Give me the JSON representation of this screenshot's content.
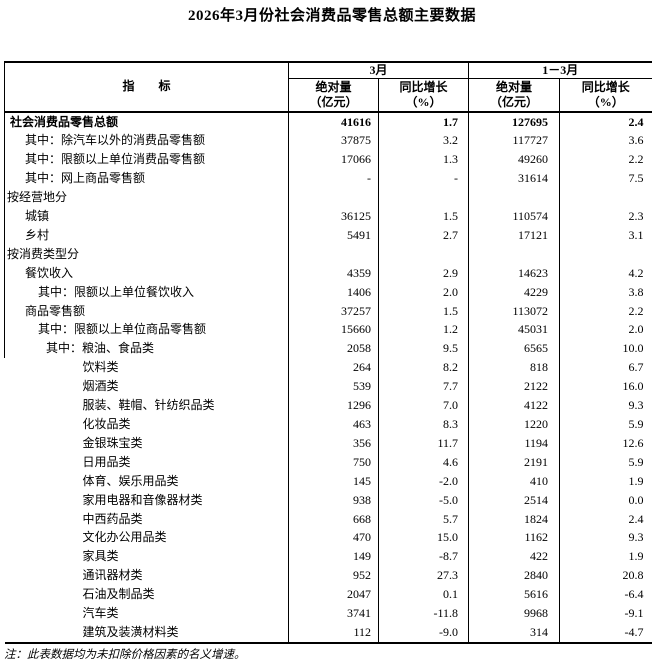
{
  "title": "2026年3月份社会消费品零售总额主要数据",
  "table": {
    "header": {
      "indicator_label": "指　　标",
      "groups": [
        {
          "label": "3月"
        },
        {
          "label": "1－3月"
        }
      ],
      "subcols": [
        {
          "line1": "绝对量",
          "line2": "（亿元）"
        },
        {
          "line1": "同比增长",
          "line2": "（%）"
        },
        {
          "line1": "绝对量",
          "line2": "（亿元）"
        },
        {
          "line1": "同比增长",
          "line2": "（%）"
        }
      ]
    },
    "rows": [
      {
        "label": "社会消费品零售总额",
        "indent": "total",
        "bold": true,
        "values": [
          "41616",
          "1.7",
          "127695",
          "2.4"
        ]
      },
      {
        "label": "其中：除汽车以外的消费品零售额",
        "indent": "l1",
        "values": [
          "37875",
          "3.2",
          "117727",
          "3.6"
        ]
      },
      {
        "label": "其中：限额以上单位消费品零售额",
        "indent": "l1",
        "values": [
          "17066",
          "1.3",
          "49260",
          "2.2"
        ]
      },
      {
        "label": "其中：网上商品零售额",
        "indent": "l1",
        "values": [
          "-",
          "-",
          "31614",
          "7.5"
        ]
      },
      {
        "label": "按经营地分",
        "indent": "section",
        "values": [
          "",
          "",
          "",
          ""
        ]
      },
      {
        "label": "城镇",
        "indent": "l1",
        "values": [
          "36125",
          "1.5",
          "110574",
          "2.3"
        ]
      },
      {
        "label": "乡村",
        "indent": "l1",
        "values": [
          "5491",
          "2.7",
          "17121",
          "3.1"
        ]
      },
      {
        "label": "按消费类型分",
        "indent": "section",
        "values": [
          "",
          "",
          "",
          ""
        ]
      },
      {
        "label": "餐饮收入",
        "indent": "l1",
        "values": [
          "4359",
          "2.9",
          "14623",
          "4.2"
        ]
      },
      {
        "label": "其中：限额以上单位餐饮收入",
        "indent": "l2",
        "values": [
          "1406",
          "2.0",
          "4229",
          "3.8"
        ]
      },
      {
        "label": "商品零售额",
        "indent": "l1",
        "values": [
          "37257",
          "1.5",
          "113072",
          "2.2"
        ]
      },
      {
        "label": "其中：限额以上单位商品零售额",
        "indent": "l2",
        "values": [
          "15660",
          "1.2",
          "45031",
          "2.0"
        ]
      },
      {
        "label": "其中：粮油、食品类",
        "indent": "l3",
        "values": [
          "2058",
          "9.5",
          "6565",
          "10.0"
        ]
      },
      {
        "label": "饮料类",
        "indent": "l4",
        "values": [
          "264",
          "8.2",
          "818",
          "6.7"
        ]
      },
      {
        "label": "烟酒类",
        "indent": "l4",
        "values": [
          "539",
          "7.7",
          "2122",
          "16.0"
        ]
      },
      {
        "label": "服装、鞋帽、针纺织品类",
        "indent": "l4",
        "values": [
          "1296",
          "7.0",
          "4122",
          "9.3"
        ]
      },
      {
        "label": "化妆品类",
        "indent": "l4",
        "values": [
          "463",
          "8.3",
          "1220",
          "5.9"
        ]
      },
      {
        "label": "金银珠宝类",
        "indent": "l4",
        "values": [
          "356",
          "11.7",
          "1194",
          "12.6"
        ]
      },
      {
        "label": "日用品类",
        "indent": "l4",
        "values": [
          "750",
          "4.6",
          "2191",
          "5.9"
        ]
      },
      {
        "label": "体育、娱乐用品类",
        "indent": "l4",
        "values": [
          "145",
          "-2.0",
          "410",
          "1.9"
        ]
      },
      {
        "label": "家用电器和音像器材类",
        "indent": "l4",
        "values": [
          "938",
          "-5.0",
          "2514",
          "0.0"
        ]
      },
      {
        "label": "中西药品类",
        "indent": "l4",
        "values": [
          "668",
          "5.7",
          "1824",
          "2.4"
        ]
      },
      {
        "label": "文化办公用品类",
        "indent": "l4",
        "values": [
          "470",
          "15.0",
          "1162",
          "9.3"
        ]
      },
      {
        "label": "家具类",
        "indent": "l4",
        "values": [
          "149",
          "-8.7",
          "422",
          "1.9"
        ]
      },
      {
        "label": "通讯器材类",
        "indent": "l4",
        "values": [
          "952",
          "27.3",
          "2840",
          "20.8"
        ]
      },
      {
        "label": "石油及制品类",
        "indent": "l4",
        "values": [
          "2047",
          "0.1",
          "5616",
          "-6.4"
        ]
      },
      {
        "label": "汽车类",
        "indent": "l4",
        "values": [
          "3741",
          "-11.8",
          "9968",
          "-9.1"
        ]
      },
      {
        "label": "建筑及装潢材料类",
        "indent": "l4",
        "values": [
          "112",
          "-9.0",
          "314",
          "-4.7"
        ]
      }
    ]
  },
  "note": "注：此表数据均为未扣除价格因素的名义增速。"
}
